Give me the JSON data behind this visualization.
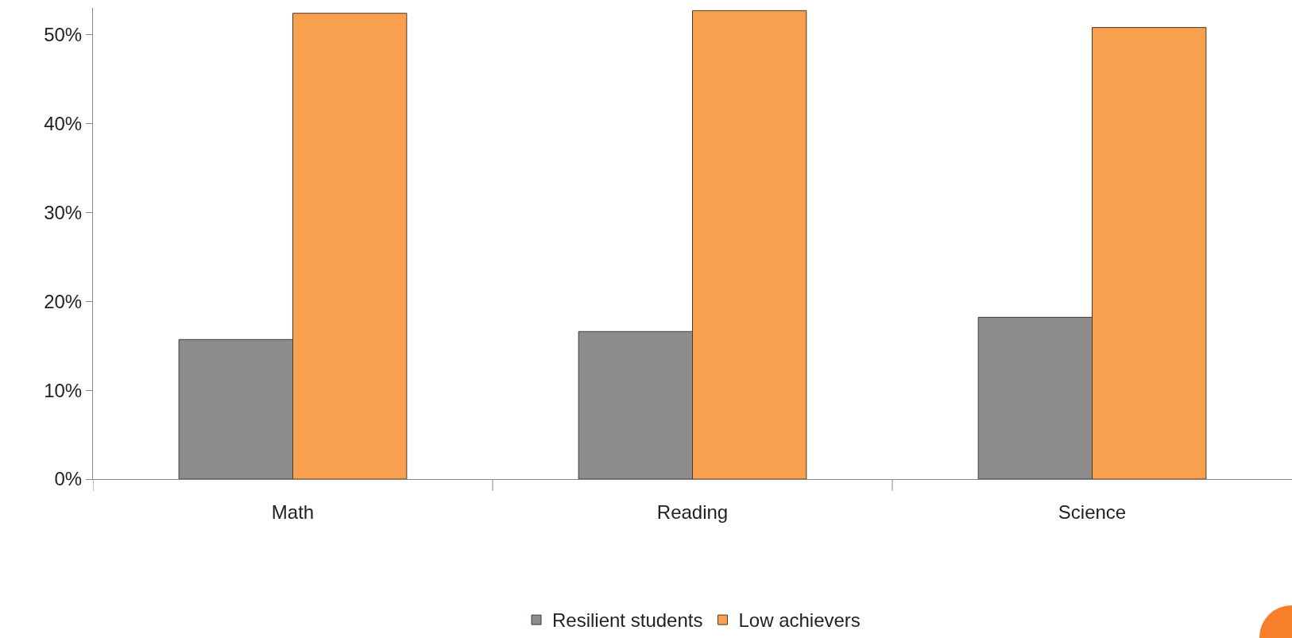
{
  "chart_data": {
    "type": "bar",
    "categories": [
      "Math",
      "Reading",
      "Science"
    ],
    "series": [
      {
        "name": "Resilient students",
        "color": "#8c8c8c",
        "values": [
          15.7,
          16.6,
          18.2
        ]
      },
      {
        "name": "Low achievers",
        "color": "#f9a04f",
        "values": [
          52.4,
          52.7,
          50.8
        ]
      }
    ],
    "ylim": [
      0,
      53
    ],
    "yticks": [
      {
        "value": 0,
        "label": "0%"
      },
      {
        "value": 10,
        "label": "10%"
      },
      {
        "value": 20,
        "label": "20%"
      },
      {
        "value": 30,
        "label": "30%"
      },
      {
        "value": 40,
        "label": "40%"
      },
      {
        "value": 50,
        "label": "50%"
      }
    ],
    "grid": false,
    "legend": "bottom"
  }
}
